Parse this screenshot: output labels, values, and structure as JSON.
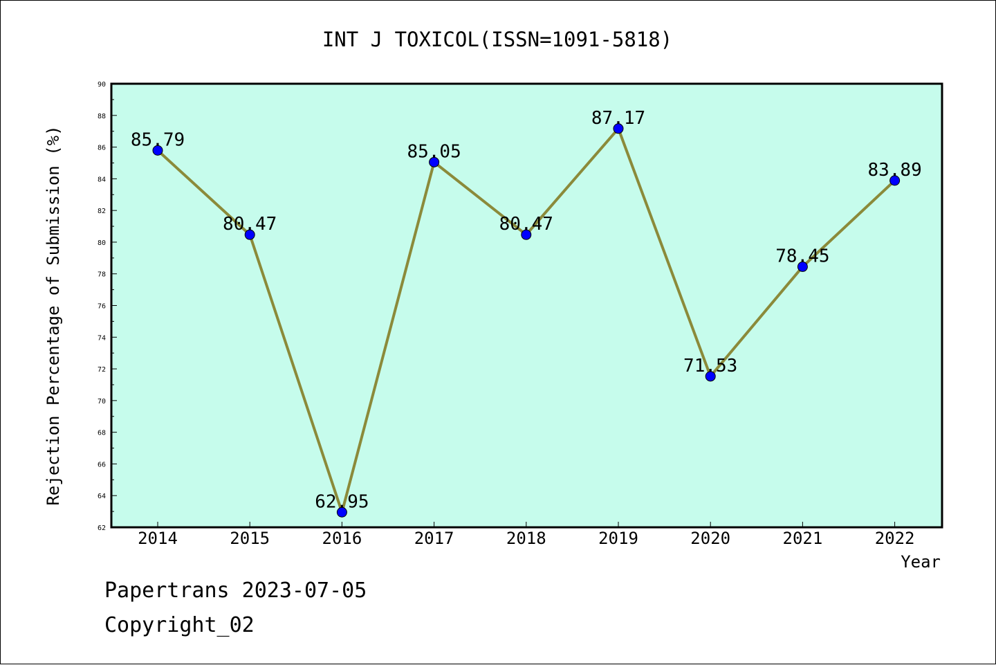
{
  "chart_data": {
    "type": "line",
    "title": "INT J TOXICOL(ISSN=1091-5818)",
    "xlabel": "Year",
    "ylabel": "Rejection Percentage of Submission (%)",
    "categories": [
      "2014",
      "2015",
      "2016",
      "2017",
      "2018",
      "2019",
      "2020",
      "2021",
      "2022"
    ],
    "series": [
      {
        "values": [
          85.79,
          80.47,
          62.95,
          85.05,
          80.47,
          87.17,
          71.53,
          78.45,
          83.89
        ],
        "labels": [
          "85.79",
          "80.47",
          "62.95",
          "85.05",
          "80.47",
          "87.17",
          "71.53",
          "78.45",
          "83.89"
        ],
        "line_color": "#8b8a3a",
        "marker_color": "#0000ff"
      }
    ],
    "ylim": [
      62,
      90
    ],
    "y_ticks": [
      "62",
      "64",
      "66",
      "68",
      "70",
      "72",
      "74",
      "76",
      "78",
      "80",
      "82",
      "84",
      "86",
      "88",
      "90"
    ],
    "plot_background": "#c6fcec",
    "grid": false,
    "legend": "none"
  },
  "footer": {
    "line1": "Papertrans 2023-07-05",
    "line2": "Copyright_02"
  }
}
